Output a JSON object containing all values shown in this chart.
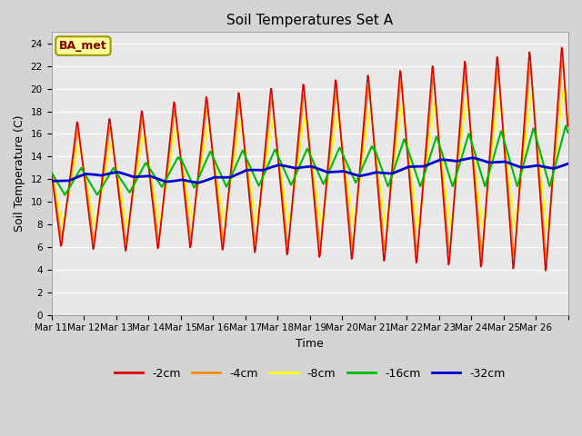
{
  "title": "Soil Temperatures Set A",
  "xlabel": "Time",
  "ylabel": "Soil Temperature (C)",
  "ylim": [
    0,
    25
  ],
  "yticks": [
    0,
    2,
    4,
    6,
    8,
    10,
    12,
    14,
    16,
    18,
    20,
    22,
    24
  ],
  "fig_bg_color": "#d4d4d4",
  "plot_bg_color": "#e8e8e8",
  "annotation_text": "BA_met",
  "annotation_bg": "#ffff99",
  "annotation_border": "#999900",
  "annotation_text_color": "#880000",
  "colors": {
    "-2cm": "#dd0000",
    "-4cm": "#ff8800",
    "-8cm": "#ffff00",
    "-16cm": "#00bb00",
    "-32cm": "#0000cc"
  },
  "legend_labels": [
    "-2cm",
    "-4cm",
    "-8cm",
    "-16cm",
    "-32cm"
  ],
  "x_tick_labels": [
    "Mar 11",
    "Mar 12",
    "Mar 13",
    "Mar 14",
    "Mar 15",
    "Mar 16",
    "Mar 17",
    "Mar 18",
    "Mar 19",
    "Mar 20",
    "Mar 21",
    "Mar 22",
    "Mar 23",
    "Mar 24",
    "Mar 25",
    "Mar 26"
  ],
  "n_days": 16,
  "pts_per_day": 48,
  "figsize": [
    6.4,
    4.8
  ],
  "dpi": 100
}
